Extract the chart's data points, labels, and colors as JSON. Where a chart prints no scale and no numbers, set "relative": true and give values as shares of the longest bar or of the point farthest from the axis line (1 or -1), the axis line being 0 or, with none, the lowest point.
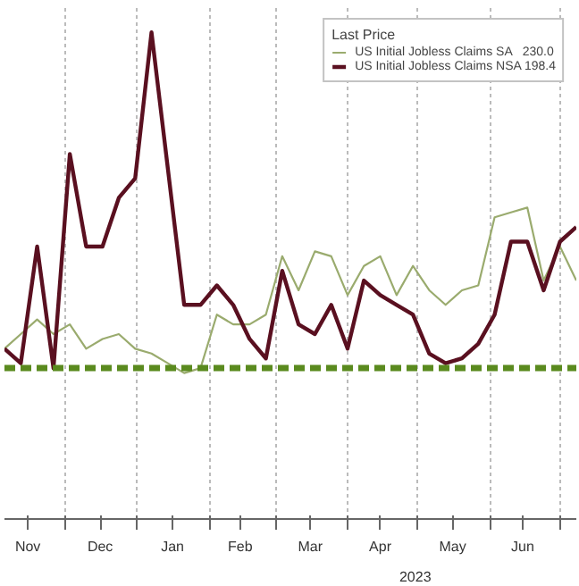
{
  "chart_data": {
    "type": "line",
    "relative": true,
    "legend_title": "Last Price",
    "legend": "top right",
    "grid": "x",
    "line_style": "solid",
    "marker": "none",
    "x": [
      "2022-11-05",
      "2022-11-12",
      "2022-11-19",
      "2022-11-26",
      "2022-12-03",
      "2022-12-10",
      "2022-12-17",
      "2022-12-24",
      "2022-12-31",
      "2023-01-07",
      "2023-01-14",
      "2023-01-21",
      "2023-01-28",
      "2023-02-04",
      "2023-02-11",
      "2023-02-18",
      "2023-02-25",
      "2023-03-04",
      "2023-03-11",
      "2023-03-18",
      "2023-03-25",
      "2023-04-01",
      "2023-04-08",
      "2023-04-15",
      "2023-04-22",
      "2023-04-29",
      "2023-05-06",
      "2023-05-13",
      "2023-05-20",
      "2023-05-27",
      "2023-06-03",
      "2023-06-10",
      "2023-06-17",
      "2023-06-24",
      "2023-07-01",
      "2023-07-08"
    ],
    "xlim": [
      "2022-11-05",
      "2023-07-08"
    ],
    "xticks": [
      {
        "value": "2022-11-15",
        "label": "Nov"
      },
      {
        "value": "2022-12-16",
        "label": "Dec"
      },
      {
        "value": "2023-01-16",
        "label": "Jan"
      },
      {
        "value": "2023-02-14",
        "label": "Feb"
      },
      {
        "value": "2023-03-16",
        "label": "Mar"
      },
      {
        "value": "2023-04-15",
        "label": "Apr"
      },
      {
        "value": "2023-05-16",
        "label": "May"
      },
      {
        "value": "2023-06-15",
        "label": "Jun"
      },
      {
        "value": "2022-12-01",
        "label": null
      },
      {
        "value": "2023-01-01",
        "label": null
      },
      {
        "value": "2023-02-01",
        "label": null
      },
      {
        "value": "2023-03-01",
        "label": null
      },
      {
        "value": "2023-04-01",
        "label": null
      },
      {
        "value": "2023-05-01",
        "label": null
      },
      {
        "value": "2023-06-01",
        "label": null
      },
      {
        "value": "2023-07-01",
        "label": null
      }
    ],
    "series": [
      {
        "name": "US Initial Jobless Claims SA   230.0",
        "color": "#9aab6e",
        "values": [
          0.35,
          0.38,
          0.41,
          0.38,
          0.4,
          0.35,
          0.37,
          0.38,
          0.35,
          0.34,
          0.32,
          0.3,
          0.31,
          0.42,
          0.4,
          0.4,
          0.42,
          0.54,
          0.47,
          0.55,
          0.54,
          0.46,
          0.52,
          0.54,
          0.46,
          0.52,
          0.47,
          0.44,
          0.47,
          0.48,
          0.62,
          0.63,
          0.64,
          0.49,
          0.56,
          0.49
        ]
      },
      {
        "name": "US Initial Jobless Claims NSA 198.4",
        "color": "#5a1020",
        "values": [
          0.35,
          0.32,
          0.56,
          0.31,
          0.75,
          0.56,
          0.56,
          0.66,
          0.7,
          1.0,
          0.72,
          0.44,
          0.44,
          0.48,
          0.44,
          0.37,
          0.33,
          0.51,
          0.4,
          0.38,
          0.44,
          0.35,
          0.49,
          0.46,
          0.44,
          0.42,
          0.34,
          0.32,
          0.33,
          0.36,
          0.42,
          0.57,
          0.57,
          0.47,
          0.57,
          0.6
        ]
      }
    ],
    "ref_lines": [
      {
        "axis": "y",
        "value": 0.31,
        "label": null,
        "color": "#5a8a1e",
        "line_style": "dashed"
      }
    ],
    "annotations": [
      "2023"
    ]
  }
}
